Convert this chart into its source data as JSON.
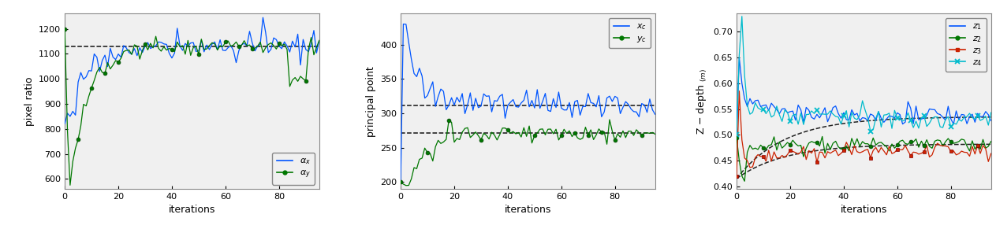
{
  "fig_width": 12.63,
  "fig_height": 2.91,
  "dpi": 100,
  "background_color": "#ffffff",
  "axes_facecolor": "#f0f0f0",
  "plot1": {
    "ylabel": "pixel ratio",
    "xlabel": "iterations",
    "xlim": [
      0,
      95
    ],
    "ylim": [
      560,
      1260
    ],
    "yticks": [
      600,
      700,
      800,
      900,
      1000,
      1100,
      1200
    ],
    "xticks": [
      0,
      20,
      40,
      60,
      80
    ],
    "hline": 1130,
    "hline_color": "#222222"
  },
  "plot2": {
    "ylabel": "principal point",
    "xlabel": "iterations",
    "xlim": [
      0,
      95
    ],
    "ylim": [
      190,
      445
    ],
    "yticks": [
      200,
      250,
      300,
      350,
      400
    ],
    "xticks": [
      0,
      20,
      40,
      60,
      80
    ],
    "hlines": [
      312,
      271
    ]
  },
  "plot3": {
    "xlabel": "iterations",
    "xlim": [
      0,
      95
    ],
    "ylim": [
      0.395,
      0.735
    ],
    "yticks": [
      0.4,
      0.45,
      0.5,
      0.55,
      0.6,
      0.65,
      0.7
    ],
    "xticks": [
      0,
      20,
      40,
      60,
      80
    ]
  }
}
